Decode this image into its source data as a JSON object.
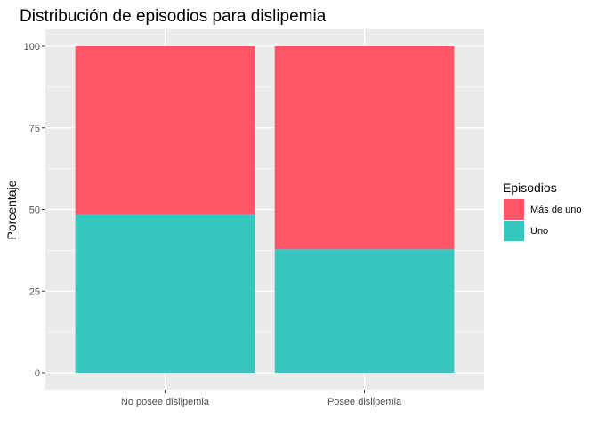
{
  "chart_data": {
    "type": "bar",
    "stacked": true,
    "title": "Distribución de episodios para dislipemia",
    "xlabel": "",
    "ylabel": "Porcentaje",
    "ylim": [
      0,
      100
    ],
    "yticks": [
      0,
      25,
      50,
      75,
      100
    ],
    "categories": [
      "No posee dislipemia",
      "Posee dislipemia"
    ],
    "series": [
      {
        "name": "Uno",
        "values": [
          48.5,
          37.8
        ],
        "color": "#37C5BF"
      },
      {
        "name": "Más de uno",
        "values": [
          51.5,
          62.2
        ],
        "color": "#FF5564"
      }
    ],
    "legend": {
      "title": "Episodios",
      "placement": "right",
      "items": [
        {
          "label": "Más de uno",
          "color": "#FF5564"
        },
        {
          "label": "Uno",
          "color": "#37C5BF"
        }
      ]
    },
    "grid": true,
    "panel_background": "#EBEBEB"
  }
}
